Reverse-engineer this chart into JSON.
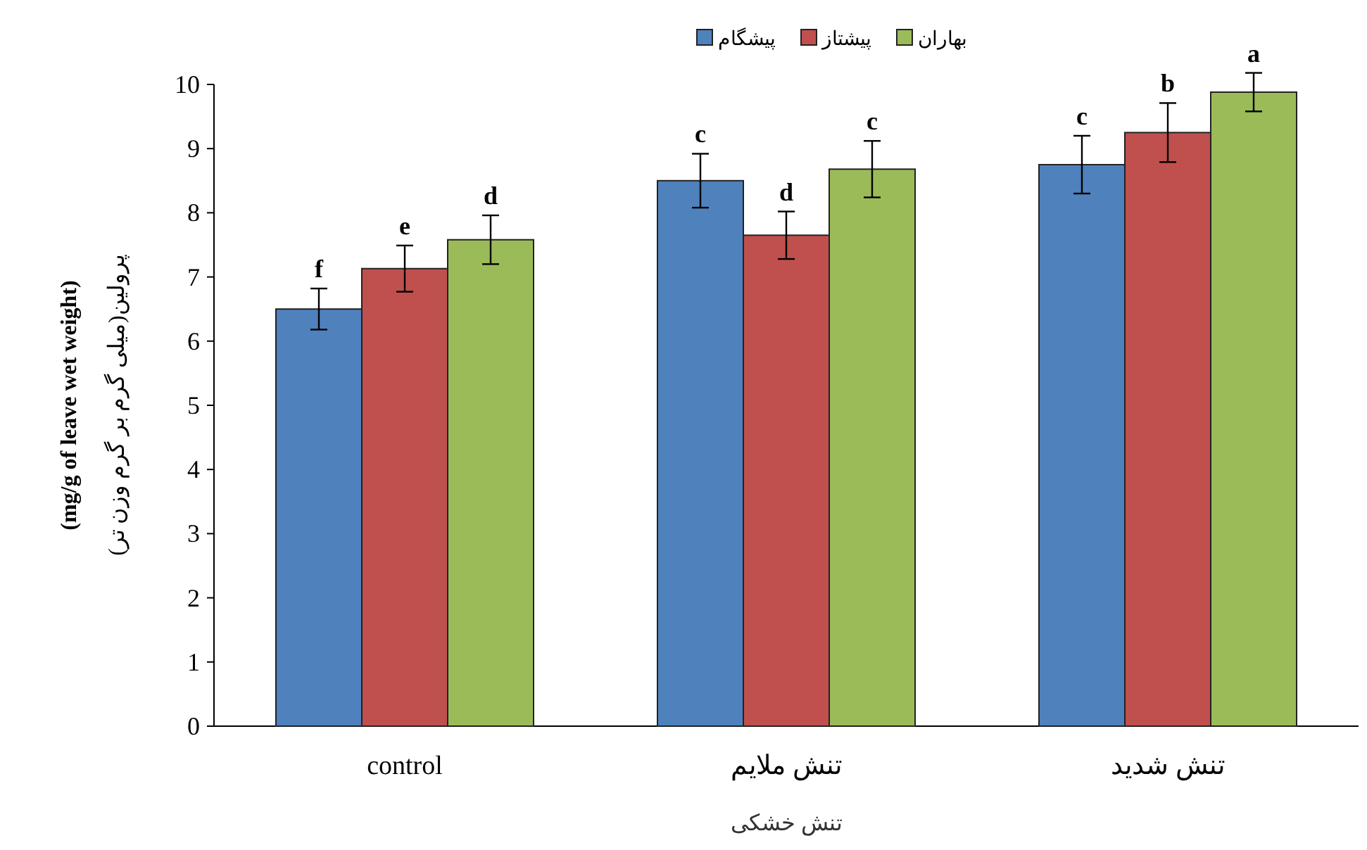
{
  "chart_data": {
    "type": "bar",
    "xlabel": "تنش خشکی",
    "ylabel": "پرولین(میلی گرم بر گرم وزن تر)\n(mg/g of leave wet weight)",
    "categories": [
      "control",
      "تنش ملایم",
      "تنش شدید"
    ],
    "series": [
      {
        "name": "پیشگام",
        "color": "#4f81bd",
        "values": [
          6.5,
          8.5,
          8.75
        ],
        "errors": [
          0.32,
          0.42,
          0.45
        ],
        "value_labels": [
          "f",
          "c",
          "c"
        ]
      },
      {
        "name": "پیشتاز",
        "color": "#c0504d",
        "values": [
          7.13,
          7.65,
          9.25
        ],
        "errors": [
          0.36,
          0.37,
          0.46
        ],
        "value_labels": [
          "e",
          "d",
          "b"
        ]
      },
      {
        "name": "بهاران",
        "color": "#9bbb59",
        "values": [
          7.58,
          8.68,
          9.88
        ],
        "errors": [
          0.38,
          0.44,
          0.3
        ],
        "value_labels": [
          "d",
          "c",
          "a"
        ]
      }
    ],
    "ylim": [
      0,
      10
    ],
    "yticks": [
      0,
      1,
      2,
      3,
      4,
      5,
      6,
      7,
      8,
      9,
      10
    ],
    "legend": "top",
    "grid": false
  }
}
